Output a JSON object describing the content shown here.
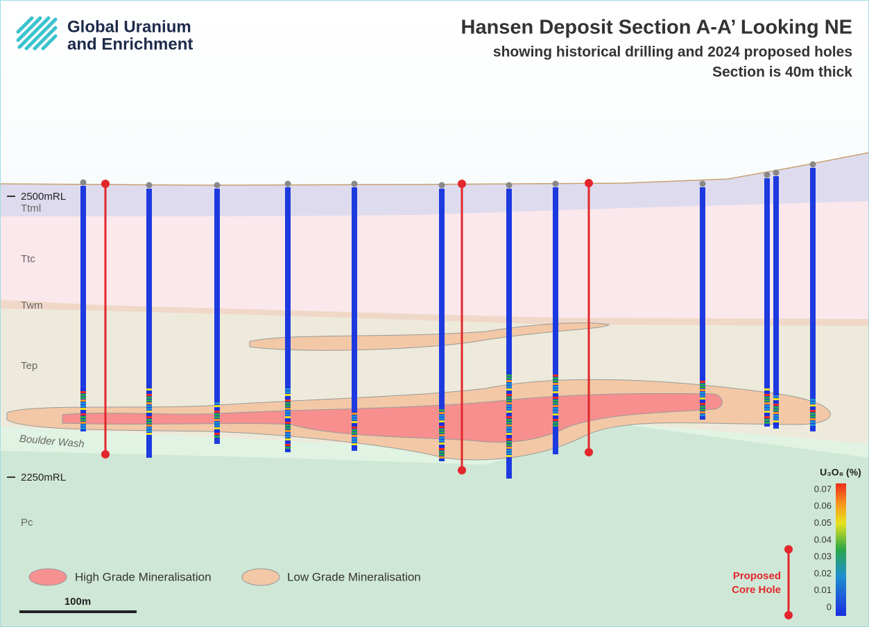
{
  "logo": {
    "line1": "Global Uranium",
    "line2": "and Enrichment"
  },
  "header": {
    "title": "Hansen Deposit Section A-A’ Looking NE",
    "subtitle": "showing historical drilling and 2024 proposed holes",
    "note": "Section is 40m thick"
  },
  "elevations": [
    "2500mRL",
    "2250mRL"
  ],
  "units": [
    "Ttml",
    "Ttc",
    "Twm",
    "Tep",
    "Boulder Wash",
    "Pc"
  ],
  "colorbar": {
    "title": "U₃O₈ (%)",
    "ticks": [
      0.07,
      0.06,
      0.05,
      0.04,
      0.03,
      0.02,
      0.01,
      0
    ]
  },
  "legend": {
    "high_grade": "High Grade Mineralisation",
    "low_grade": "Low Grade Mineralisation",
    "proposed": [
      "Proposed",
      "Core Hole"
    ]
  },
  "scale_bar": "100m"
}
